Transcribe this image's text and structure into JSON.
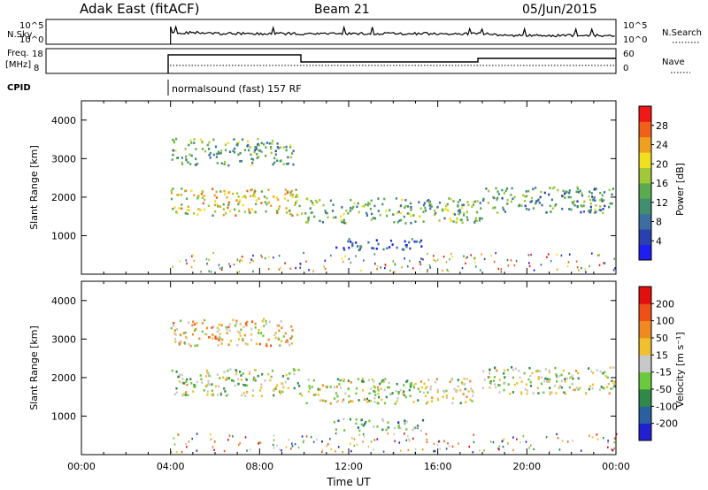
{
  "header": {
    "station": "Adak East (fitACF)",
    "beam": "Beam 21",
    "date": "05/Jun/2015"
  },
  "top_panels": {
    "nsky_label": "N.Sky",
    "nsky_ticks": [
      "10^5",
      "10^0"
    ],
    "nsearch_label": "N.Search",
    "nsearch_ticks": [
      "10^5",
      "10^0"
    ],
    "freq_label": "Freq.",
    "freq_unit": "[MHz]",
    "freq_ticks": [
      "18",
      "8"
    ],
    "nave_label": "Nave",
    "nave_ticks": [
      "60",
      "0"
    ],
    "cpid_label": "CPID",
    "cpid_text": "normalsound (fast) 157 RF"
  },
  "chart_data": [
    {
      "type": "heatmap",
      "name": "power",
      "ylabel": "Slant Range [km]",
      "xlabel": "",
      "ylim": [
        0,
        4500
      ],
      "yticks": [
        "4000",
        "3000",
        "2000",
        "1000"
      ],
      "xlim": [
        0,
        24
      ],
      "colorbar_label": "Power [dB]",
      "colorbar_ticks": [
        "28",
        "24",
        "20",
        "16",
        "12",
        "8",
        "4"
      ],
      "colors": [
        "#1e1ef0",
        "#2a3fb0",
        "#3b6fa0",
        "#3f8f70",
        "#5aaa50",
        "#a0c838",
        "#f0e020",
        "#f0a020",
        "#f06018",
        "#f01818"
      ],
      "data_start_hour": 4.0,
      "regions": [
        {
          "t0": 4.0,
          "t1": 9.9,
          "r0": 1550,
          "r1": 2250,
          "level": 0.62
        },
        {
          "t0": 4.0,
          "t1": 9.5,
          "r0": 2850,
          "r1": 3550,
          "level": 0.42
        },
        {
          "t0": 10.0,
          "t1": 18.0,
          "r0": 1350,
          "r1": 2000,
          "level": 0.44
        },
        {
          "t0": 11.3,
          "t1": 15.3,
          "r0": 650,
          "r1": 950,
          "level": 0.2
        },
        {
          "t0": 18.0,
          "t1": 23.9,
          "r0": 1600,
          "r1": 2300,
          "level": 0.38
        }
      ]
    },
    {
      "type": "heatmap",
      "name": "velocity",
      "ylabel": "Slant Range [km]",
      "xlabel": "Time UT",
      "ylim": [
        0,
        4500
      ],
      "yticks": [
        "4000",
        "3000",
        "2000",
        "1000"
      ],
      "xlim": [
        0,
        24
      ],
      "xticks": [
        "00:00",
        "04:00",
        "08:00",
        "12:00",
        "16:00",
        "20:00",
        "00:00"
      ],
      "colorbar_label": "Velocity [m s⁻¹]",
      "colorbar_ticks": [
        "200",
        "100",
        "50",
        "15",
        "-15",
        "-50",
        "-100",
        "-200"
      ],
      "colors": [
        "#2020d0",
        "#2a5fa0",
        "#2f8a4a",
        "#6cc83c",
        "#c8c8c8",
        "#f0c030",
        "#f08a20",
        "#f05018",
        "#e01010"
      ],
      "data_start_hour": 4.0,
      "regions": [
        {
          "t0": 4.0,
          "t1": 9.9,
          "r0": 1550,
          "r1": 2250,
          "level": 0.45
        },
        {
          "t0": 4.0,
          "t1": 9.5,
          "r0": 2850,
          "r1": 3550,
          "level": 0.6
        },
        {
          "t0": 10.0,
          "t1": 18.0,
          "r0": 1350,
          "r1": 2000,
          "level": 0.48
        },
        {
          "t0": 11.3,
          "t1": 15.3,
          "r0": 650,
          "r1": 950,
          "level": 0.32
        },
        {
          "t0": 18.0,
          "t1": 23.9,
          "r0": 1600,
          "r1": 2300,
          "level": 0.46
        }
      ]
    }
  ]
}
